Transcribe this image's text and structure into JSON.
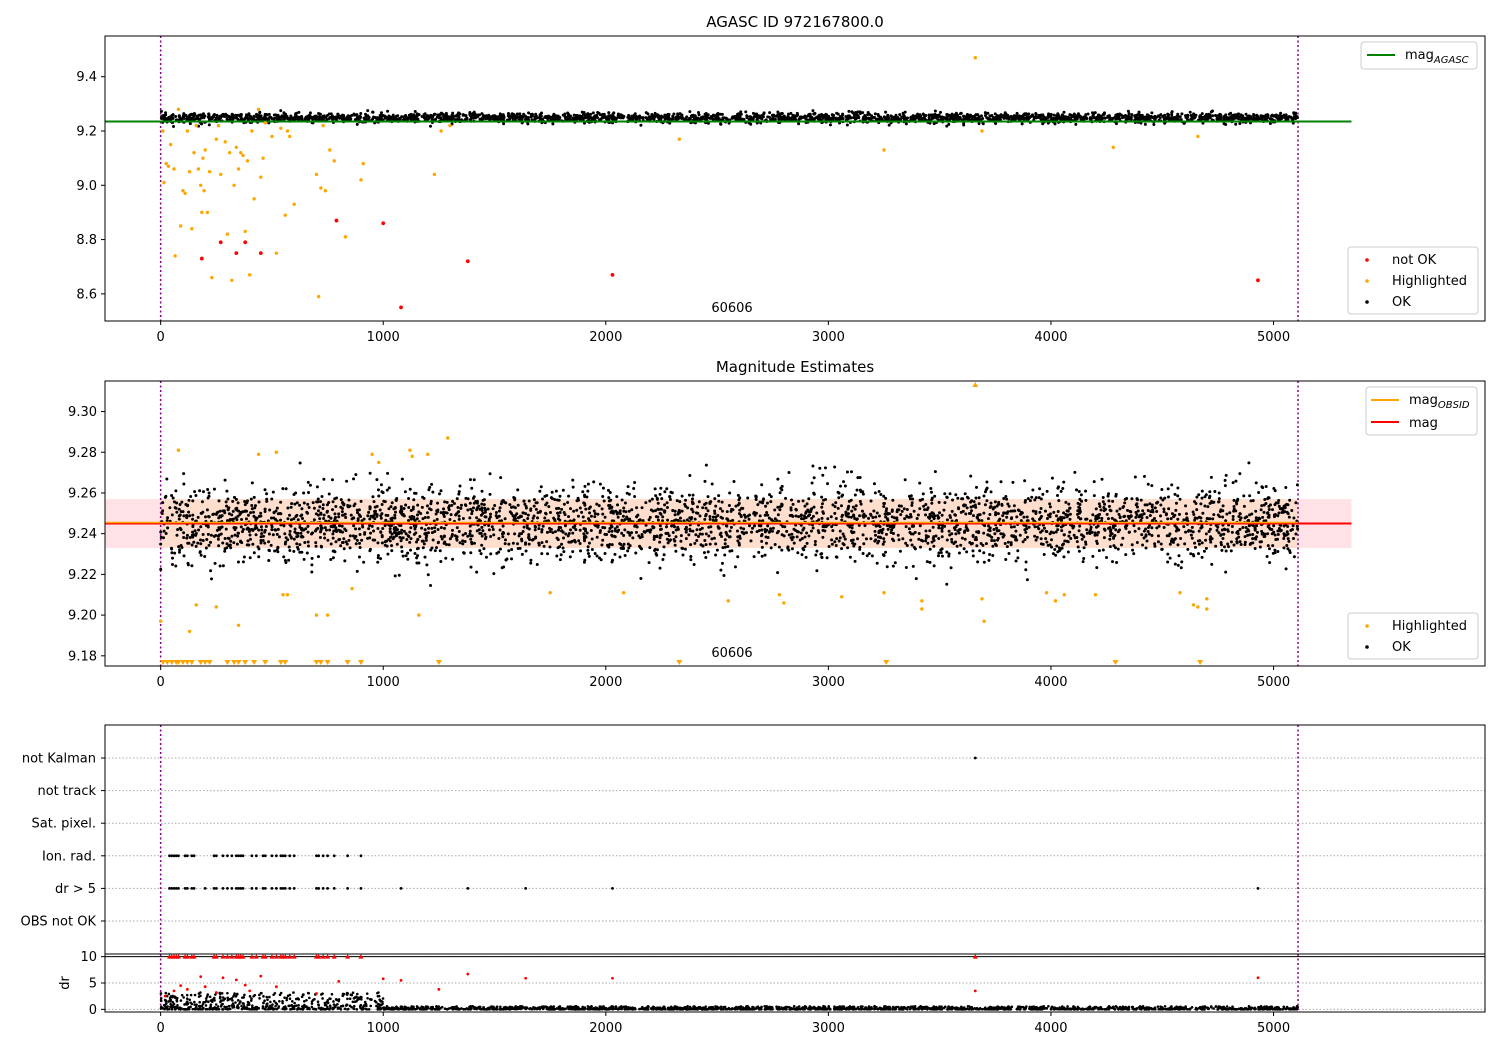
{
  "chart_data": [
    {
      "type": "scatter",
      "title": "AGASC ID 972167800.0",
      "annotation": "60606",
      "xlim": [
        -250,
        5950
      ],
      "ylim": [
        8.5,
        9.55
      ],
      "xticks": [
        0,
        1000,
        2000,
        3000,
        4000,
        5000
      ],
      "yticks": [
        8.6,
        8.8,
        9.0,
        9.2,
        9.4
      ],
      "ytick_labels": [
        "8.6",
        "8.8",
        "9.0",
        "9.2",
        "9.4"
      ],
      "vlines": [
        0,
        5110
      ],
      "line": {
        "name": "mag_AGASC",
        "y": 9.235,
        "x": [
          -250,
          5350
        ],
        "color": "#008000"
      },
      "legend_line": {
        "label_main": "mag",
        "label_sub": "AGASC",
        "color": "#008000"
      },
      "legend_scatter": [
        {
          "label": "not OK",
          "color": "#ff0000"
        },
        {
          "label": "Highlighted",
          "color": "#ffa500"
        },
        {
          "label": "OK",
          "color": "#000000"
        }
      ],
      "ok_band": {
        "x": [
          0,
          5110
        ],
        "center": 9.248,
        "sd": 0.009
      },
      "highlighted": [
        [
          10,
          9.2
        ],
        [
          15,
          9.01
        ],
        [
          25,
          9.08
        ],
        [
          35,
          9.07
        ],
        [
          45,
          9.15
        ],
        [
          60,
          9.06
        ],
        [
          65,
          8.74
        ],
        [
          80,
          9.28
        ],
        [
          90,
          8.85
        ],
        [
          100,
          8.98
        ],
        [
          110,
          8.97
        ],
        [
          120,
          9.2
        ],
        [
          130,
          9.05
        ],
        [
          140,
          8.84
        ],
        [
          150,
          9.12
        ],
        [
          160,
          9.22
        ],
        [
          170,
          9.06
        ],
        [
          180,
          9.0
        ],
        [
          185,
          8.9
        ],
        [
          190,
          9.1
        ],
        [
          195,
          8.98
        ],
        [
          200,
          9.13
        ],
        [
          210,
          8.9
        ],
        [
          220,
          9.05
        ],
        [
          230,
          8.66
        ],
        [
          250,
          9.17
        ],
        [
          260,
          9.22
        ],
        [
          270,
          9.04
        ],
        [
          290,
          9.16
        ],
        [
          300,
          8.82
        ],
        [
          310,
          9.12
        ],
        [
          320,
          8.65
        ],
        [
          330,
          9.0
        ],
        [
          340,
          9.14
        ],
        [
          350,
          9.06
        ],
        [
          360,
          9.12
        ],
        [
          370,
          9.11
        ],
        [
          380,
          8.83
        ],
        [
          390,
          9.09
        ],
        [
          400,
          8.67
        ],
        [
          410,
          9.2
        ],
        [
          420,
          8.95
        ],
        [
          440,
          9.28
        ],
        [
          450,
          9.03
        ],
        [
          460,
          9.1
        ],
        [
          470,
          9.23
        ],
        [
          500,
          9.18
        ],
        [
          520,
          8.75
        ],
        [
          540,
          9.21
        ],
        [
          560,
          8.89
        ],
        [
          570,
          9.2
        ],
        [
          580,
          9.18
        ],
        [
          600,
          8.93
        ],
        [
          700,
          9.04
        ],
        [
          710,
          8.59
        ],
        [
          720,
          8.99
        ],
        [
          730,
          9.22
        ],
        [
          740,
          8.98
        ],
        [
          760,
          9.13
        ],
        [
          780,
          9.09
        ],
        [
          830,
          8.81
        ],
        [
          900,
          9.02
        ],
        [
          910,
          9.08
        ],
        [
          1230,
          9.04
        ],
        [
          1260,
          9.2
        ],
        [
          1300,
          9.22
        ],
        [
          2330,
          9.17
        ],
        [
          3250,
          9.13
        ],
        [
          3660,
          9.47
        ],
        [
          3690,
          9.2
        ],
        [
          4280,
          9.14
        ],
        [
          4660,
          9.18
        ]
      ],
      "not_ok": [
        [
          185,
          8.73
        ],
        [
          270,
          8.79
        ],
        [
          340,
          8.75
        ],
        [
          380,
          8.79
        ],
        [
          450,
          8.75
        ],
        [
          790,
          8.87
        ],
        [
          1000,
          8.86
        ],
        [
          1080,
          8.55
        ],
        [
          1380,
          8.72
        ],
        [
          2030,
          8.67
        ],
        [
          4930,
          8.65
        ]
      ]
    },
    {
      "type": "scatter",
      "title": "Magnitude Estimates",
      "annotation": "60606",
      "xlim": [
        -250,
        5950
      ],
      "ylim": [
        9.175,
        9.315
      ],
      "xticks": [
        0,
        1000,
        2000,
        3000,
        4000,
        5000
      ],
      "yticks": [
        9.18,
        9.2,
        9.22,
        9.24,
        9.26,
        9.28,
        9.3
      ],
      "ytick_labels": [
        "9.18",
        "9.20",
        "9.22",
        "9.24",
        "9.26",
        "9.28",
        "9.30"
      ],
      "vlines": [
        0,
        5110
      ],
      "mag_line": {
        "name": "mag",
        "y": 9.245,
        "x": [
          -250,
          5350
        ],
        "color": "#ff0000"
      },
      "mag_obsid_line": {
        "name": "mag_OBSID",
        "y": 9.245,
        "x": [
          -250,
          5110
        ],
        "color": "#ffa500"
      },
      "mag_band": {
        "y": [
          9.233,
          9.257
        ],
        "x": [
          -250,
          5350
        ],
        "color": "#ffb6c1"
      },
      "mag_obsid_band": {
        "y": [
          9.233,
          9.257
        ],
        "x": [
          0,
          5110
        ],
        "color": "#ffdab9"
      },
      "legend_lines": [
        {
          "label_main": "mag",
          "label_sub": "OBSID",
          "color": "#ffa500"
        },
        {
          "label_main": "mag",
          "label_sub": "",
          "color": "#ff0000"
        }
      ],
      "legend_scatter": [
        {
          "label": "Highlighted",
          "color": "#ffa500"
        },
        {
          "label": "OK",
          "color": "#000000"
        }
      ],
      "ok_band": {
        "x": [
          0,
          5110
        ],
        "center": 9.245,
        "sd": 0.009
      },
      "highlighted": [
        [
          0,
          9.197
        ],
        [
          80,
          9.281
        ],
        [
          130,
          9.192
        ],
        [
          160,
          9.205
        ],
        [
          250,
          9.204
        ],
        [
          350,
          9.195
        ],
        [
          440,
          9.279
        ],
        [
          520,
          9.28
        ],
        [
          550,
          9.21
        ],
        [
          570,
          9.21
        ],
        [
          700,
          9.2
        ],
        [
          750,
          9.2
        ],
        [
          860,
          9.213
        ],
        [
          950,
          9.279
        ],
        [
          980,
          9.275
        ],
        [
          1120,
          9.281
        ],
        [
          1130,
          9.278
        ],
        [
          1160,
          9.2
        ],
        [
          1200,
          9.279
        ],
        [
          1290,
          9.287
        ],
        [
          1750,
          9.211
        ],
        [
          2080,
          9.211
        ],
        [
          2550,
          9.207
        ],
        [
          2780,
          9.21
        ],
        [
          2800,
          9.206
        ],
        [
          3060,
          9.209
        ],
        [
          3250,
          9.211
        ],
        [
          3420,
          9.207
        ],
        [
          3420,
          9.203
        ],
        [
          3690,
          9.208
        ],
        [
          3700,
          9.197
        ],
        [
          3980,
          9.211
        ],
        [
          4020,
          9.207
        ],
        [
          4060,
          9.21
        ],
        [
          4200,
          9.21
        ],
        [
          4580,
          9.211
        ],
        [
          4640,
          9.205
        ],
        [
          4660,
          9.204
        ],
        [
          4700,
          9.208
        ],
        [
          4700,
          9.203
        ]
      ],
      "clipped_low_x": [
        10,
        30,
        50,
        70,
        80,
        100,
        120,
        140,
        180,
        200,
        220,
        300,
        330,
        350,
        380,
        420,
        470,
        540,
        560,
        700,
        720,
        750,
        840,
        900,
        1250,
        2330,
        3260,
        4290,
        4670
      ],
      "clipped_high_x": [
        3660
      ]
    },
    {
      "type": "scatter",
      "annotation": "",
      "xlim": [
        -250,
        5950
      ],
      "ytick_labels": [
        "not Kalman",
        "not track",
        "Sat. pixel.",
        "Ion. rad.",
        "dr > 5",
        "OBS not OK"
      ],
      "vlines": [
        0,
        5110
      ],
      "not_kalman_x": [
        3660
      ],
      "ion_rad_x": [
        40,
        50,
        60,
        70,
        80,
        110,
        120,
        140,
        150,
        240,
        250,
        280,
        300,
        320,
        340,
        350,
        360,
        370,
        410,
        430,
        460,
        470,
        500,
        520,
        540,
        550,
        560,
        580,
        600,
        700,
        710,
        730,
        750,
        780,
        840,
        900
      ],
      "dr5_x": [
        40,
        50,
        60,
        70,
        80,
        110,
        120,
        140,
        150,
        200,
        240,
        250,
        280,
        300,
        320,
        340,
        350,
        360,
        370,
        410,
        430,
        460,
        470,
        500,
        520,
        540,
        550,
        560,
        580,
        600,
        700,
        710,
        730,
        750,
        780,
        840,
        900,
        1080,
        1380,
        1640,
        2030,
        4930
      ]
    },
    {
      "type": "scatter",
      "ylabel": "dr",
      "xlim": [
        -250,
        5950
      ],
      "ylim": [
        -0.5,
        10.5
      ],
      "xticks": [
        0,
        1000,
        2000,
        3000,
        4000,
        5000
      ],
      "yticks": [
        0,
        5,
        10
      ],
      "vlines": [
        0,
        5110
      ],
      "hline": 10,
      "red_clipped_x": [
        40,
        50,
        60,
        70,
        80,
        110,
        120,
        140,
        150,
        240,
        250,
        280,
        300,
        320,
        340,
        350,
        360,
        370,
        410,
        430,
        460,
        470,
        500,
        520,
        540,
        550,
        560,
        580,
        600,
        700,
        710,
        730,
        750,
        780,
        840,
        900,
        3660
      ],
      "red_points": [
        [
          20,
          2.5
        ],
        [
          60,
          3.5
        ],
        [
          90,
          4.5
        ],
        [
          120,
          3.8
        ],
        [
          180,
          6.2
        ],
        [
          200,
          4.3
        ],
        [
          250,
          3.2
        ],
        [
          280,
          6.0
        ],
        [
          340,
          5.6
        ],
        [
          380,
          4.6
        ],
        [
          400,
          3.5
        ],
        [
          450,
          6.3
        ],
        [
          520,
          4.3
        ],
        [
          700,
          3.0
        ],
        [
          800,
          5.3
        ],
        [
          1000,
          5.8
        ],
        [
          1080,
          5.5
        ],
        [
          1250,
          3.8
        ],
        [
          1380,
          6.7
        ],
        [
          1640,
          5.9
        ],
        [
          2030,
          5.9
        ],
        [
          3660,
          3.5
        ],
        [
          4930,
          6.0
        ]
      ],
      "black_scatter_regions": [
        {
          "x": [
            0,
            1000
          ],
          "max": 3.2
        },
        {
          "x": [
            1000,
            5110
          ],
          "max": 0.6
        }
      ]
    }
  ]
}
